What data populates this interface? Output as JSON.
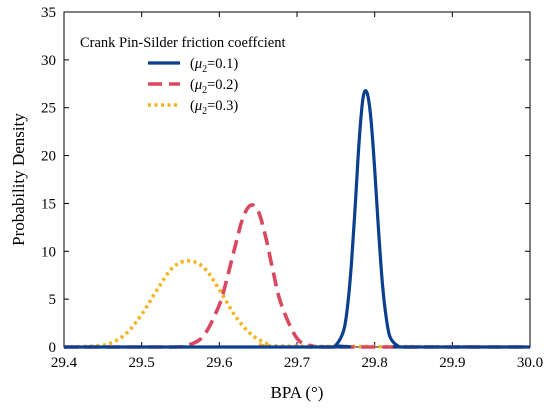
{
  "chart_data": {
    "type": "line",
    "title": "",
    "xlabel": "BPA (°)",
    "ylabel": "Probability Density",
    "xlim": [
      29.4,
      30.0
    ],
    "ylim": [
      0,
      35
    ],
    "xticks": [
      29.4,
      29.5,
      29.6,
      29.7,
      29.8,
      29.9,
      30.0
    ],
    "xtick_labels": [
      "29.4",
      "29.5",
      "29.6",
      "29.7",
      "29.8",
      "29.9",
      "30.0"
    ],
    "yticks": [
      0,
      5,
      10,
      15,
      20,
      25,
      30,
      35
    ],
    "ytick_labels": [
      "0",
      "5",
      "10",
      "15",
      "20",
      "25",
      "30",
      "35"
    ],
    "grid": false,
    "legend": {
      "title": "Crank Pin-Silder friction coeffcient",
      "placement": "top-left"
    },
    "series": [
      {
        "name": "(μ2=0.1)",
        "name_prefix": "(",
        "name_var": "μ",
        "name_sub": "2",
        "name_suffix": "=0.1)",
        "color": "#0b3f8f",
        "style": "solid",
        "x": [
          29.74,
          29.75,
          29.76,
          29.765,
          29.77,
          29.775,
          29.78,
          29.785,
          29.79,
          29.795,
          29.8,
          29.805,
          29.81,
          29.815,
          29.82,
          29.83,
          29.84
        ],
        "y": [
          0.0,
          0.2,
          1.7,
          4.2,
          8.6,
          14.8,
          21.5,
          26.0,
          26.6,
          24.0,
          18.6,
          12.2,
          6.6,
          3.0,
          1.0,
          0.1,
          0.0
        ]
      },
      {
        "name": "(μ2=0.2)",
        "name_prefix": "(",
        "name_var": "μ",
        "name_sub": "2",
        "name_suffix": "=0.2)",
        "color": "#d9485f",
        "style": "dashed",
        "x": [
          29.54,
          29.56,
          29.58,
          29.6,
          29.61,
          29.62,
          29.63,
          29.64,
          29.65,
          29.66,
          29.67,
          29.68,
          29.7,
          29.72,
          29.74
        ],
        "y": [
          0.0,
          0.2,
          1.2,
          4.4,
          7.2,
          10.4,
          13.4,
          14.8,
          14.2,
          11.4,
          7.6,
          4.4,
          0.9,
          0.1,
          0.0
        ]
      },
      {
        "name": "(μ2=0.3)",
        "name_prefix": "(",
        "name_var": "μ",
        "name_sub": "2",
        "name_suffix": "=0.3)",
        "color": "#f5b21c",
        "style": "dotted",
        "x": [
          29.44,
          29.46,
          29.48,
          29.5,
          29.52,
          29.54,
          29.56,
          29.58,
          29.6,
          29.62,
          29.64,
          29.66,
          29.68
        ],
        "y": [
          0.1,
          0.4,
          1.4,
          3.4,
          6.0,
          8.3,
          9.0,
          8.3,
          6.0,
          3.3,
          1.4,
          0.4,
          0.1
        ]
      }
    ]
  }
}
